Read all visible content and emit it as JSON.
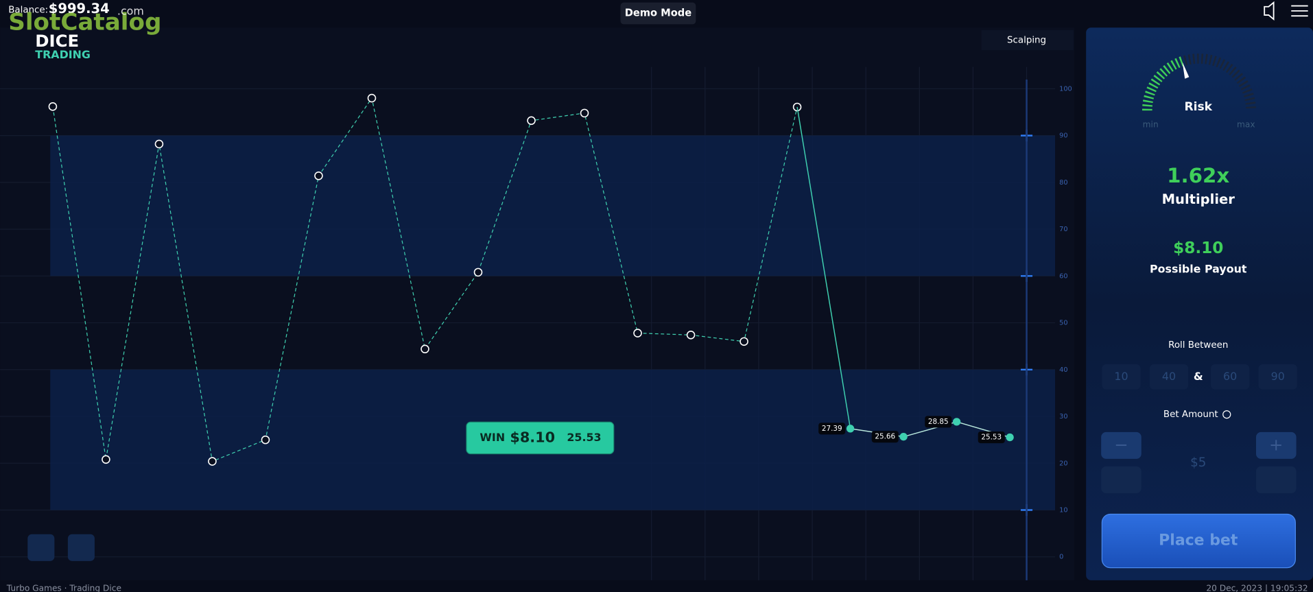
{
  "header": {
    "balance_label": "Balance:",
    "balance": "$999.34",
    "demo_mode": "Demo Mode",
    "watermark": {
      "brand": "SlotCatalog",
      "tld": ".com",
      "game_line1": "DICE",
      "game_line2": "TRADING"
    }
  },
  "chart": {
    "type": "line",
    "mode": "Scalping",
    "ylim": [
      0,
      100
    ],
    "yticks": [
      0,
      10,
      20,
      30,
      40,
      50,
      60,
      70,
      80,
      90,
      100
    ],
    "series": [
      {
        "name": "history",
        "color": "#3fd0b0",
        "dashed": true,
        "values": [
          96.2,
          20.8,
          88.2,
          20.4,
          25.0,
          81.4,
          98.0,
          44.4,
          60.8,
          93.2,
          94.8,
          47.8,
          47.4,
          46.0,
          96.1
        ]
      },
      {
        "name": "current",
        "color": "#3fd0b0",
        "dashed": false,
        "data_labels": true,
        "values": [
          27.39,
          25.66,
          28.85,
          25.53
        ]
      }
    ],
    "win": {
      "label": "WIN",
      "amount": "$8.10",
      "roll": "25.53"
    }
  },
  "panel": {
    "risk": {
      "label": "Risk",
      "min": "min",
      "max": "max"
    },
    "multiplier": {
      "value": "1.62x",
      "label": "Multiplier"
    },
    "payout": {
      "value": "$8.10",
      "label": "Possible Payout"
    },
    "roll_between": {
      "label": "Roll Between",
      "ranges": [
        [
          10,
          40
        ],
        [
          60,
          90
        ]
      ],
      "joiner": "&"
    },
    "bet": {
      "label": "Bet Amount",
      "minus": "−",
      "plus": "+",
      "amount": "$5"
    },
    "place_bet": "Place bet"
  },
  "footer": {
    "left": "Turbo Games · Trading Dice",
    "right": "20 Dec, 2023 | 19:05:32"
  }
}
